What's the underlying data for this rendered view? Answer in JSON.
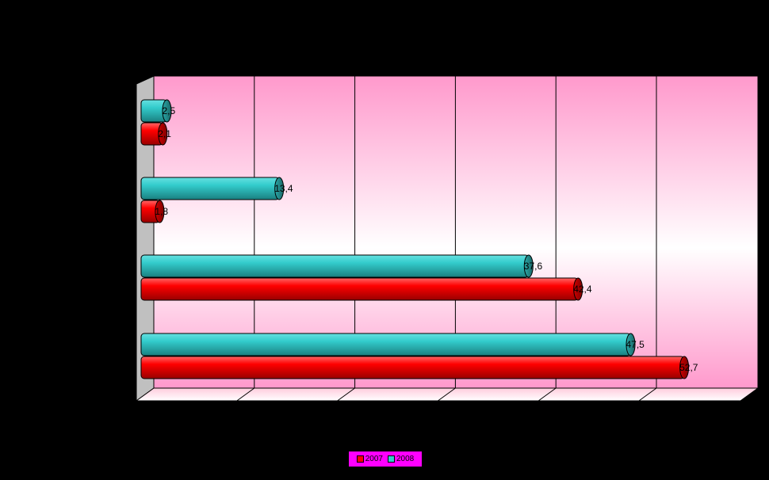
{
  "chart_data": {
    "type": "bar",
    "orientation": "horizontal",
    "categories": [
      "",
      "",
      "",
      ""
    ],
    "series": [
      {
        "name": "2007",
        "color": "#ff0000",
        "values": [
          2.1,
          1.8,
          42.4,
          52.7
        ]
      },
      {
        "name": "2008",
        "color": "#33cccc",
        "values": [
          2.5,
          13.4,
          37.6,
          47.5
        ]
      }
    ],
    "value_labels": {
      "2007": [
        "2,1",
        "1,8",
        "42,4",
        "52,7"
      ],
      "2008": [
        "2,5",
        "13,4",
        "37,6",
        "47,5"
      ]
    },
    "xlim": [
      0,
      60
    ],
    "gridlines": true,
    "legend_position": "bottom",
    "style": "3d-cylinder",
    "plot_background": "pink-gradient"
  },
  "legend": {
    "items": [
      {
        "label": "2007",
        "color": "#ff0000"
      },
      {
        "label": "2008",
        "color": "#33cccc"
      }
    ]
  }
}
